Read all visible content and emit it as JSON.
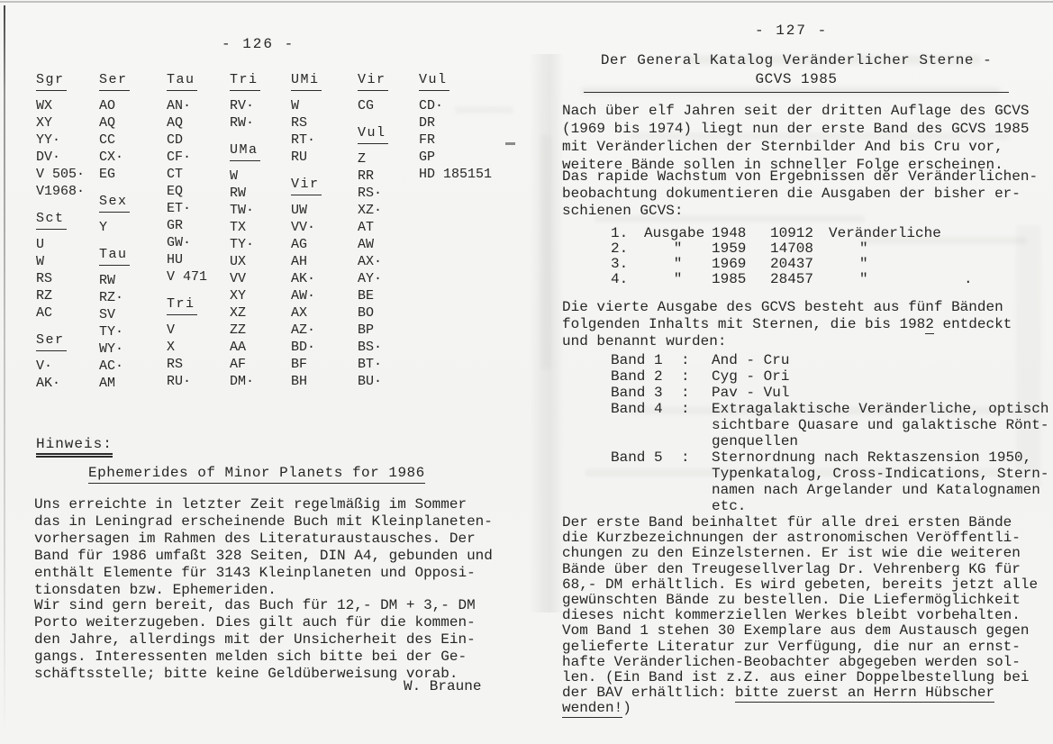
{
  "colors": {
    "paper": "#f4f3f1",
    "ink": "#262626"
  },
  "left_page": {
    "page_number": "- 126 -",
    "star_table": {
      "columns": [
        {
          "blocks": [
            {
              "header": "Sgr",
              "items": [
                "WX",
                "XY",
                "YY·",
                "DV·",
                "V 505·",
                "V1968·"
              ]
            },
            {
              "header": "Sct",
              "items": [
                "U",
                "W",
                "RS",
                "RZ",
                "AC"
              ]
            },
            {
              "header": "Ser",
              "items": [
                "V·",
                "AK·"
              ]
            }
          ]
        },
        {
          "blocks": [
            {
              "header": "Ser",
              "items": [
                "AO",
                "AQ",
                "CC",
                "CX·",
                "EG"
              ]
            },
            {
              "header": "Sex",
              "items": [
                "Y"
              ]
            },
            {
              "header": "Tau",
              "items": [
                "RW",
                "RZ·",
                "SV",
                "TY·",
                "WY·",
                "AC·",
                "AM"
              ]
            }
          ]
        },
        {
          "blocks": [
            {
              "header": "Tau",
              "items": [
                "AN·",
                "AQ",
                "CD",
                "CF·",
                "CT",
                "EQ",
                "ET·",
                "GR",
                "GW·",
                "HU",
                "V 471"
              ]
            },
            {
              "header": "Tri",
              "items": [
                "V",
                "X",
                "RS",
                "RU·"
              ]
            }
          ]
        },
        {
          "blocks": [
            {
              "header": "Tri",
              "items": [
                "RV·",
                "RW·"
              ]
            },
            {
              "header": "UMa",
              "items": [
                "W",
                "RW",
                "TW·",
                "TX",
                "TY·",
                "UX",
                "VV",
                "XY",
                "XZ",
                "ZZ",
                "AA",
                "AF",
                "DM·"
              ]
            }
          ]
        },
        {
          "blocks": [
            {
              "header": "UMi",
              "items": [
                "W",
                "RS",
                "RT·",
                "RU"
              ]
            },
            {
              "header": "Vir",
              "items": [
                "UW",
                "VV·",
                "AG",
                "AH",
                "AK·",
                "AW·",
                "AX",
                "AZ·",
                "BD·",
                "BF",
                "BH"
              ]
            }
          ]
        },
        {
          "blocks": [
            {
              "header": "Vir",
              "items": [
                "CG"
              ]
            },
            {
              "header": "Vul",
              "items": [
                "Z",
                "RR",
                "RS·",
                "XZ·",
                "AT",
                "AW",
                "AX·",
                "AY·",
                "BE",
                "BO",
                "BP",
                "BS·",
                "BT·",
                "BU·"
              ]
            }
          ]
        },
        {
          "blocks": [
            {
              "header": "Vul",
              "items": [
                "CD·",
                "DR",
                "FR",
                "GP",
                "HD 185151"
              ]
            }
          ]
        }
      ]
    },
    "hinweis_label": "Hinweis:",
    "article_title": "Ephemerides of Minor Planets for 1986",
    "paragraph1": "Uns erreichte in letzter Zeit regelmäßig im Sommer\ndas in Leningrad erscheinende Buch mit Kleinplaneten-\nvorhersagen im Rahmen des Literaturaustausches. Der\nBand für 1986 umfaßt 328 Seiten, DIN A4, gebunden und\nenthält Elemente für 3143 Kleinplaneten und Opposi-\ntionsdaten bzw. Ephemeriden.",
    "paragraph2": "Wir sind gern bereit, das Buch für 12,- DM + 3,- DM\nPorto weiterzugeben. Dies gilt auch für die kommen-\nden Jahre, allerdings mit der Unsicherheit des Ein-\ngangs. Interessenten melden sich bitte bei der Ge-\nschäftsstelle; bitte keine Geldüberweisung vorab.",
    "signature": "W. Braune"
  },
  "right_page": {
    "page_number": "- 127 -",
    "title_line1": "Der General Katalog Veränderlicher Sterne -",
    "title_line2": "GCVS 1985",
    "paragraph1": "Nach über elf Jahren seit der dritten Auflage des GCVS\n(1969 bis 1974) liegt nun der erste Band des GCVS 1985\nmit Veränderlichen der Sternbilder And bis Cru vor,\nweitere Bände sollen in schneller Folge erscheinen.",
    "paragraph2": "Das rapide Wachstum von Ergebnissen der Veränderlichen-\nbeobachtung dokumentieren die Ausgaben der bisher er-\nschienen GCVS:",
    "editions": {
      "rows": [
        [
          "1.",
          "Ausgabe",
          "1948",
          "10912",
          "Veränderliche",
          ""
        ],
        [
          "2.",
          "\"",
          "1959",
          "14708",
          "\"",
          ""
        ],
        [
          "3.",
          "\"",
          "1969",
          "20437",
          "\"",
          ""
        ],
        [
          "4.",
          "\"",
          "1985",
          "28457",
          "\"",
          "."
        ]
      ]
    },
    "paragraph3_part1": "Die vierte Ausgabe des GCVS besteht aus fünf Bänden\nfolgenden Inhalts mit Sternen, die bis 198",
    "paragraph3_underlined": "2",
    "paragraph3_part2": " entdeckt\nund benannt wurden:",
    "bands": {
      "rows": [
        {
          "label": "Band 1",
          "colon": ":",
          "text": "And - Cru"
        },
        {
          "label": "Band 2",
          "colon": ":",
          "text": "Cyg - Ori"
        },
        {
          "label": "Band 3",
          "colon": ":",
          "text": "Pav - Vul"
        },
        {
          "label": "Band 4",
          "colon": ":",
          "text": "Extragalaktische Veränderliche, optisch\nsichtbare Quasare und galaktische Rönt-\ngenquellen"
        },
        {
          "label": "Band 5",
          "colon": ":",
          "text": "Sternordnung nach Rektaszension 1950,\nTypenkatalog, Cross-Indications, Stern-\nnamen nach Argelander und Katalognamen\netc."
        }
      ]
    },
    "closing_part1": "Der erste Band beinhaltet für alle drei ersten Bände\ndie Kurzbezeichnungen der astronomischen Veröffentli-\nchungen zu den Einzelsternen. Er ist wie die weiteren\nBände über den Treugesellverlag Dr. Vehrenberg KG für\n68,- DM erhältlich. Es wird gebeten, bereits jetzt alle\ngewünschten Bände zu bestellen. Die Liefermöglichkeit\ndieses nicht kommerziellen Werkes bleibt vorbehalten.\nVom Band 1 stehen 30 Exemplare aus dem Austausch gegen\ngelieferte Literatur zur Verfügung, die nur an ernst-\nhafte Veränderlichen-Beobachter abgegeben werden sol-\nlen. (Ein Band ist z.Z. aus einer Doppelbestellung bei\nder BAV erhältlich: ",
    "closing_underlined": "bitte zuerst an Herrn Hübscher wenden!",
    "closing_part2": ")"
  }
}
